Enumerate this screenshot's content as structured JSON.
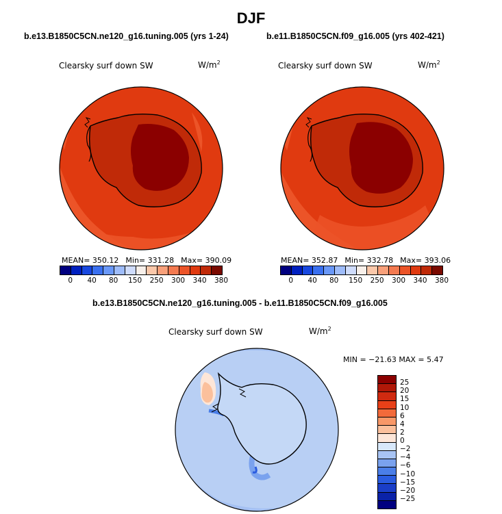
{
  "season_title": "DJF",
  "left_case": "b.e13.B1850C5CN.ne120_g16.tuning.005 (yrs 1-24)",
  "right_case": "b.e11.B1850C5CN.f09_g16.005 (yrs 402-421)",
  "diff_case": "b.e13.B1850C5CN.ne120_g16.tuning.005 - b.e11.B1850C5CN.f09_g16.005",
  "variable": "Clearsky surf down SW",
  "units": "W/m",
  "units_exp": "2",
  "left_stats": {
    "mean": "MEAN= 350.12",
    "min": "Min= 331.28",
    "max": "Max= 390.09"
  },
  "right_stats": {
    "mean": "MEAN= 352.87",
    "min": "Min= 332.78",
    "max": "Max= 393.06"
  },
  "diff_stats": "MIN = −21.63 MAX =  5.47",
  "abs_colorbar": {
    "labels": [
      "0",
      "40",
      "80",
      "150",
      "250",
      "300",
      "340",
      "380"
    ],
    "colors": [
      "#000080",
      "#0020c0",
      "#1848e0",
      "#3a70f0",
      "#6a98f8",
      "#9ebcfa",
      "#cfdcfc",
      "#f8f0ea",
      "#fbc8aa",
      "#f8a07a",
      "#f47a50",
      "#ec5428",
      "#e03a10",
      "#c02a08",
      "#7a0a00"
    ]
  },
  "diff_colorbar": {
    "labels": [
      "25",
      "20",
      "15",
      "10",
      "6",
      "4",
      "2",
      "0",
      "−2",
      "−4",
      "−6",
      "−10",
      "−15",
      "−20",
      "−25"
    ],
    "colors": [
      "#8b0000",
      "#b01808",
      "#d02a10",
      "#e84018",
      "#f26a3a",
      "#f89868",
      "#fbc09c",
      "#fde6d8",
      "#d8e8fa",
      "#a8c4f4",
      "#7aa2ee",
      "#4a7ee8",
      "#2a5ce0",
      "#1a3ec8",
      "#0a22a8",
      "#000080"
    ]
  },
  "chart_data": {
    "type": "heatmap",
    "panels": [
      {
        "title": "Clearsky surf down SW",
        "case": "b.e13.B1850C5CN.ne120_g16.tuning.005 (yrs 1-24)",
        "mean": 350.12,
        "min": 331.28,
        "max": 390.09,
        "units": "W/m2"
      },
      {
        "title": "Clearsky surf down SW",
        "case": "b.e11.B1850C5CN.f09_g16.005 (yrs 402-421)",
        "mean": 352.87,
        "min": 332.78,
        "max": 393.06,
        "units": "W/m2"
      },
      {
        "title": "Clearsky surf down SW",
        "case": "b.e13.B1850C5CN.ne120_g16.tuning.005 - b.e11.B1850C5CN.f09_g16.005",
        "min": -21.63,
        "max": 5.47,
        "units": "W/m2"
      }
    ],
    "abs_levels": [
      0,
      40,
      80,
      150,
      250,
      300,
      340,
      380
    ],
    "diff_levels": [
      25,
      20,
      15,
      10,
      6,
      4,
      2,
      0,
      -2,
      -4,
      -6,
      -10,
      -15,
      -20,
      -25
    ]
  }
}
